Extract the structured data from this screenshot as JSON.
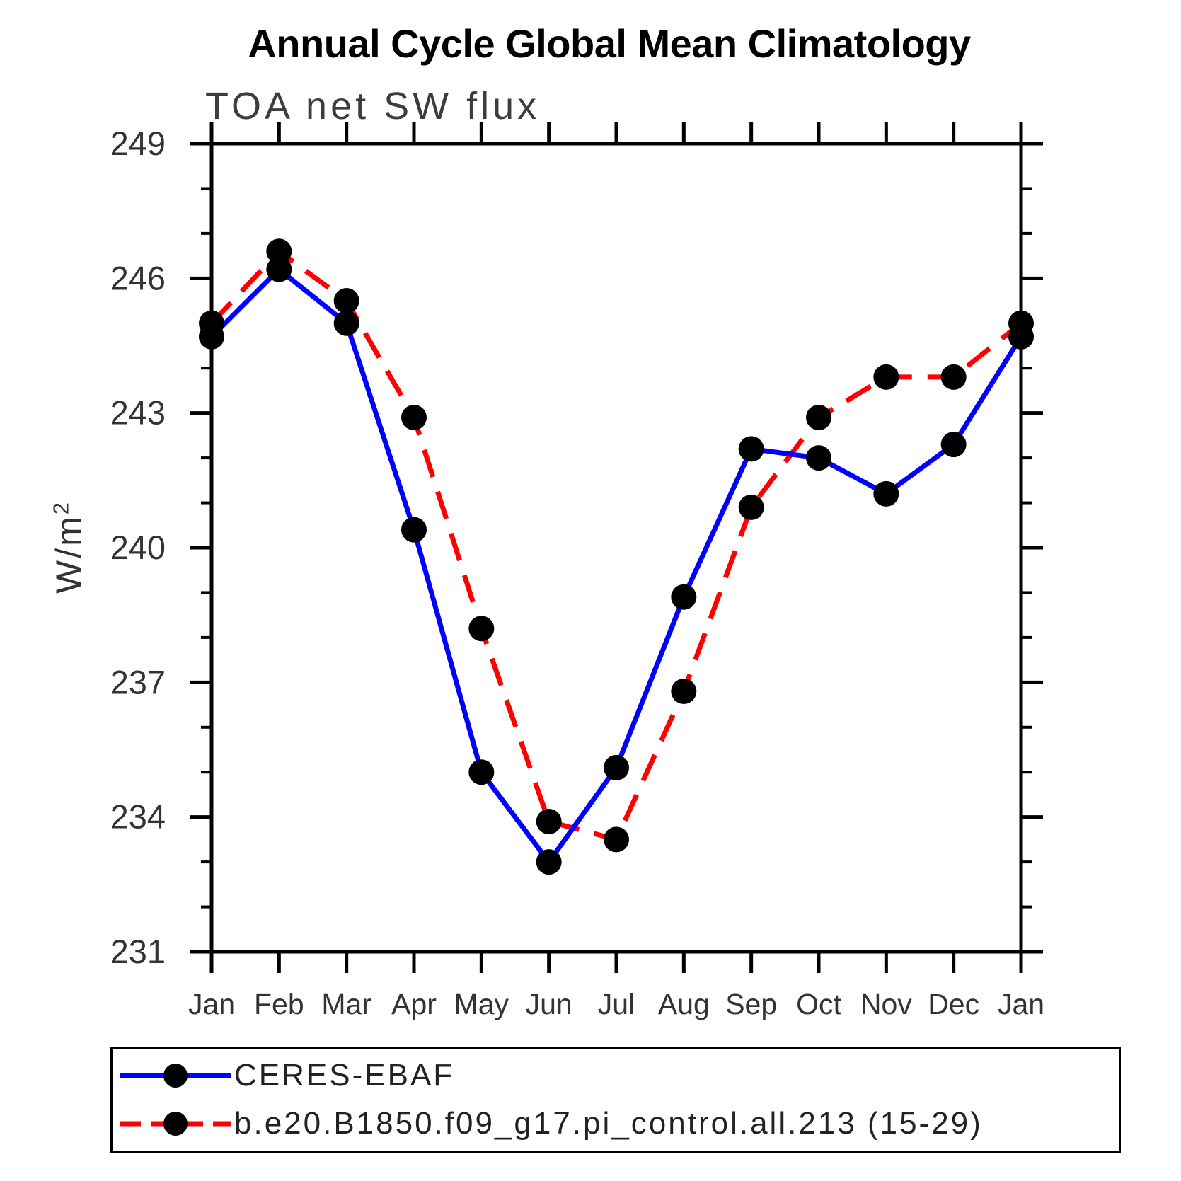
{
  "chart_data": {
    "type": "line",
    "title": "Annual Cycle Global Mean Climatology",
    "subtitle": "TOA net SW flux",
    "ylabel": {
      "base": "W/m",
      "sup": "2"
    },
    "categories": [
      "Jan",
      "Feb",
      "Mar",
      "Apr",
      "May",
      "Jun",
      "Jul",
      "Aug",
      "Sep",
      "Oct",
      "Nov",
      "Dec",
      "Jan"
    ],
    "ylim": [
      231,
      249
    ],
    "yticks": [
      249,
      246,
      243,
      240,
      237,
      234,
      231
    ],
    "minor_tick_step": 1,
    "grid": false,
    "legend_position": "bottom-left-box",
    "axis_color": "#000000",
    "tick_label_color": "#333333",
    "series": [
      {
        "name": "CERES-EBAF",
        "color": "#0000ff",
        "line_style": "solid",
        "marker": "filled-circle",
        "marker_color": "#000000",
        "values": [
          244.7,
          246.2,
          245.0,
          240.4,
          235.0,
          233.0,
          235.1,
          238.9,
          242.2,
          242.0,
          241.2,
          242.3,
          244.7
        ]
      },
      {
        "name": "b.e20.B1850.f09_g17.pi_control.all.213 (15-29)",
        "color": "#ff0000",
        "line_style": "dashed",
        "marker": "filled-circle",
        "marker_color": "#000000",
        "values": [
          245.0,
          246.6,
          245.5,
          242.9,
          238.2,
          233.9,
          233.5,
          236.8,
          240.9,
          242.9,
          243.8,
          243.8,
          245.0
        ]
      }
    ]
  }
}
